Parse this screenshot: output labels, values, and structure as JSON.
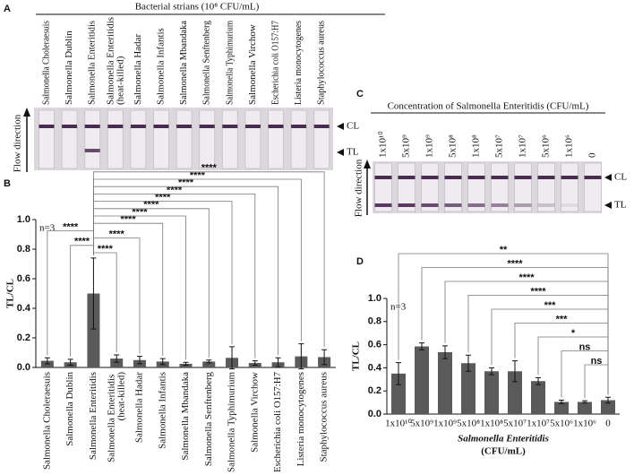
{
  "panel_labels": {
    "a": "A",
    "b": "B",
    "c": "C",
    "d": "D"
  },
  "panel_a": {
    "title": "Bacterial strians (10⁸ CFU/mL)",
    "strains": [
      "Salmonella Choleraesuis",
      "Salmonella Dublin",
      "Salmonella Enteritidis",
      "Salmonella Enteritidis (heat-killed)",
      "Salmonella Hadar",
      "Salmonella Infantis",
      "Salmonella Mbandaka",
      "Salmonella Senftenberg",
      "Salmonella Typhimurium",
      "Salmonella Virchow",
      "Escherichia coli O157:H7",
      "Listeria monocytogenes",
      "Staphylococcus aureus"
    ],
    "cl": "CL",
    "tl": "TL",
    "flow": "Flow direction"
  },
  "panel_c": {
    "title": "Concentration of Salmonella Enteritidis (CFU/mL)",
    "concentrations": [
      "1x10¹⁰",
      "5x10⁹",
      "1x10⁹",
      "5x10⁸",
      "1x10⁸",
      "5x10⁷",
      "1x10⁷",
      "5x10⁶",
      "1x10⁶",
      "0"
    ],
    "cl": "CL",
    "tl": "TL",
    "flow": "Flow direction"
  },
  "chart_data": [
    {
      "type": "bar",
      "y_label": "TL/CL",
      "note": "n=3",
      "categories": [
        "Salmonella Choleraesuis",
        "Salmonella Dublin",
        "Salmonella Enteritidis",
        "Salmonella Enteritidis (heat-killed)",
        "Salmonella Hadar",
        "Salmonella Infantis",
        "Salmonella Mbandaka",
        "Salmonella Senftenberg",
        "Salmonella Typhimurium",
        "Salmonella Virchow",
        "Escherichia coli O157:H7",
        "Listeria monocytogenes",
        "Staphylococcus aureus"
      ],
      "series": [
        {
          "color": "#5a5a5a",
          "values": [
            0.045,
            0.035,
            0.5,
            0.06,
            0.05,
            0.04,
            0.025,
            0.04,
            0.065,
            0.03,
            0.035,
            0.075,
            0.07
          ],
          "errors": [
            0.02,
            0.02,
            0.24,
            0.025,
            0.025,
            0.02,
            0.01,
            0.01,
            0.075,
            0.015,
            0.03,
            0.085,
            0.05
          ]
        }
      ],
      "ylim": [
        0,
        1
      ],
      "yticks": [
        {
          "value": 0,
          "label": "0.0"
        },
        0.2,
        0.4,
        0.6,
        0.8,
        {
          "value": 1,
          "label": "1.0"
        }
      ],
      "comparisons": [
        {
          "label": "****",
          "pair": [
            "Salmonella Enteritidis",
            "Salmonella Enteritidis (heat-killed)"
          ]
        },
        {
          "label": "****",
          "pair": [
            "Salmonella Enteritidis",
            "Salmonella Dublin"
          ]
        },
        {
          "label": "****",
          "pair": [
            "Salmonella Enteritidis",
            "Salmonella Hadar"
          ]
        },
        {
          "label": "****",
          "pair": [
            "Salmonella Enteritidis",
            "Salmonella Choleraesuis"
          ]
        },
        {
          "label": "****",
          "pair": [
            "Salmonella Enteritidis",
            "Salmonella Infantis"
          ]
        },
        {
          "label": "****",
          "pair": [
            "Salmonella Enteritidis",
            "Salmonella Mbandaka"
          ]
        },
        {
          "label": "****",
          "pair": [
            "Salmonella Enteritidis",
            "Salmonella Senftenberg"
          ]
        },
        {
          "label": "****",
          "pair": [
            "Salmonella Enteritidis",
            "Salmonella Typhimurium"
          ]
        },
        {
          "label": "****",
          "pair": [
            "Salmonella Enteritidis",
            "Salmonella Virchow"
          ]
        },
        {
          "label": "****",
          "pair": [
            "Salmonella Enteritidis",
            "Escherichia coli O157:H7"
          ]
        },
        {
          "label": "****",
          "pair": [
            "Salmonella Enteritidis",
            "Listeria monocytogenes"
          ]
        },
        {
          "label": "****",
          "pair": [
            "Salmonella Enteritidis",
            "Staphylococcus aureus"
          ]
        }
      ]
    },
    {
      "type": "bar",
      "y_label": "TL/CL",
      "note": "n=3",
      "x_label": [
        "Salmonella Enteritidis",
        "(CFU/mL)"
      ],
      "categories": [
        "1x10¹⁰",
        "5x10⁹",
        "1x10⁹",
        "5x10⁸",
        "1x10⁸",
        "5x10⁷",
        "1x10⁷",
        "5x10⁶",
        "1x10⁶",
        "0"
      ],
      "series": [
        {
          "color": "#5a5a5a",
          "values": [
            0.35,
            0.585,
            0.535,
            0.44,
            0.37,
            0.37,
            0.285,
            0.105,
            0.105,
            0.12
          ],
          "errors": [
            0.095,
            0.03,
            0.055,
            0.07,
            0.03,
            0.09,
            0.03,
            0.015,
            0.01,
            0.025
          ]
        }
      ],
      "ylim": [
        0,
        1
      ],
      "yticks": [
        {
          "value": 0,
          "label": "0.0"
        },
        0.2,
        0.4,
        0.6,
        0.8,
        {
          "value": 1,
          "label": "1.0"
        }
      ],
      "comparisons": [
        {
          "label": "ns",
          "pair": [
            "0",
            "1x10⁶"
          ]
        },
        {
          "label": "ns",
          "pair": [
            "0",
            "5x10⁶"
          ]
        },
        {
          "label": "*",
          "pair": [
            "0",
            "1x10⁷"
          ]
        },
        {
          "label": "***",
          "pair": [
            "0",
            "5x10⁷"
          ]
        },
        {
          "label": "***",
          "pair": [
            "0",
            "1x10⁸"
          ]
        },
        {
          "label": "****",
          "pair": [
            "0",
            "5x10⁸"
          ]
        },
        {
          "label": "****",
          "pair": [
            "0",
            "1x10⁹"
          ]
        },
        {
          "label": "****",
          "pair": [
            "0",
            "5x10⁹"
          ]
        },
        {
          "label": "**",
          "pair": [
            "0",
            "1x10¹⁰"
          ]
        }
      ]
    }
  ]
}
